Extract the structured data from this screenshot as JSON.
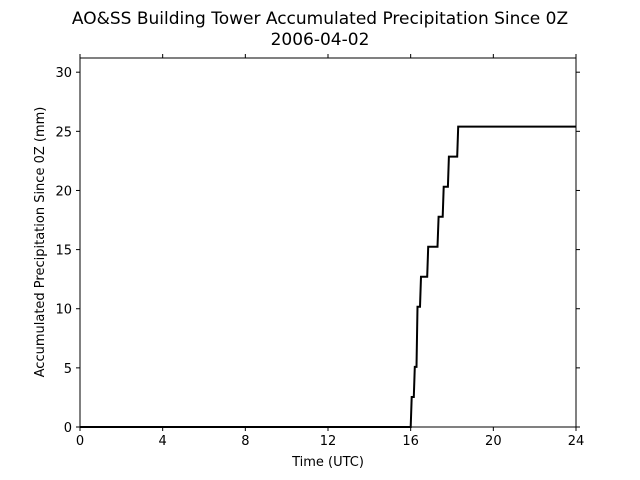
{
  "chart_data": {
    "type": "line",
    "title": "AO&SS Building Tower Accumulated Precipitation Since 0Z",
    "subtitle": "2006-04-02",
    "xlabel": "Time (UTC)",
    "ylabel": "Accumulated Precipitation Since 0Z (mm)",
    "xlim": [
      0,
      24
    ],
    "ylim": [
      0,
      31.2
    ],
    "xticks": [
      0,
      4,
      8,
      12,
      16,
      20,
      24
    ],
    "yticks": [
      0,
      5,
      10,
      15,
      20,
      25,
      30
    ],
    "grid": false,
    "line_color": "#000000",
    "series": [
      {
        "x": [
          0,
          16.0,
          16.05,
          16.15,
          16.2,
          16.28,
          16.33,
          16.45,
          16.5,
          16.8,
          16.85,
          17.3,
          17.35,
          17.55,
          17.6,
          17.8,
          17.85,
          18.25,
          18.3,
          24
        ],
        "y": [
          0,
          0,
          2.54,
          2.54,
          5.08,
          5.08,
          10.16,
          10.16,
          12.7,
          12.7,
          15.24,
          15.24,
          17.78,
          17.78,
          20.32,
          20.32,
          22.86,
          22.86,
          25.4,
          25.4
        ]
      }
    ]
  }
}
